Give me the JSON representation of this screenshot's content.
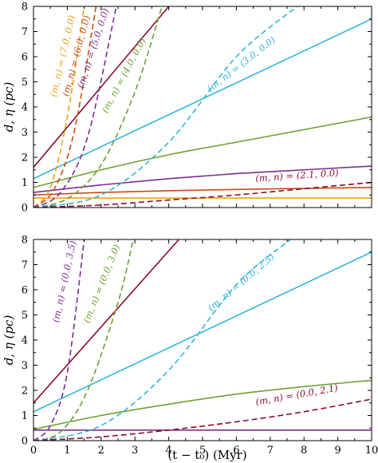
{
  "chart_data": {
    "type": "line",
    "xlabel": "(t − t₀) (Myr)",
    "x_ticks": [
      "0",
      "1",
      "2",
      "3",
      "4",
      "5",
      "6",
      "7",
      "8",
      "9",
      "10"
    ],
    "y_ticks": [
      "0",
      "1",
      "2",
      "3",
      "4",
      "5",
      "6",
      "7",
      "8"
    ],
    "panels": [
      {
        "ylabel": "d, η (pc)",
        "xlim": [
          0,
          10
        ],
        "ylim": [
          0,
          8
        ],
        "curves": [
          {
            "kind": "d",
            "style": "solid",
            "color": "#8b0a26",
            "x": [
              0,
              4.0
            ],
            "y": [
              1.6,
              8.0
            ]
          },
          {
            "kind": "d",
            "style": "solid",
            "color": "#33b5de",
            "x": [
              0,
              10
            ],
            "y": [
              1.15,
              7.5
            ]
          },
          {
            "kind": "d",
            "style": "solid",
            "color": "#6aa12e",
            "x": [
              0,
              2,
              4,
              6,
              8,
              10
            ],
            "y": [
              0.8,
              1.5,
              2.1,
              2.6,
              3.1,
              3.6
            ]
          },
          {
            "kind": "d",
            "style": "solid",
            "color": "#7b2d8e",
            "x": [
              0,
              2,
              4,
              6,
              8,
              10
            ],
            "y": [
              0.6,
              0.9,
              1.15,
              1.35,
              1.5,
              1.65
            ]
          },
          {
            "kind": "d",
            "style": "solid",
            "color": "#c84b16",
            "x": [
              0,
              2,
              4,
              6,
              8,
              10
            ],
            "y": [
              0.5,
              0.6,
              0.67,
              0.72,
              0.76,
              0.8
            ]
          },
          {
            "kind": "d",
            "style": "solid",
            "color": "#e8a317",
            "x": [
              0,
              10
            ],
            "y": [
              0.38,
              0.38
            ]
          },
          {
            "kind": "eta",
            "style": "dashed",
            "color": "#e8a317",
            "label": "(m, n) = (7.0, 0.0)",
            "x": [
              0,
              0.5,
              1.0,
              1.5
            ],
            "y": [
              0,
              0.8,
              3.6,
              8.0
            ]
          },
          {
            "kind": "eta",
            "style": "dashed",
            "color": "#c84b16",
            "label": "(m, n) = (6.0, 0.0)",
            "x": [
              0,
              0.6,
              1.2,
              1.85
            ],
            "y": [
              0,
              0.7,
              3.0,
              8.0
            ]
          },
          {
            "kind": "eta",
            "style": "dashed",
            "color": "#7b2d8e",
            "label": "(m, n) = (5.0, 0.0)",
            "x": [
              0,
              0.8,
              1.6,
              2.45
            ],
            "y": [
              0,
              0.6,
              2.8,
              8.0
            ]
          },
          {
            "kind": "eta",
            "style": "dashed",
            "color": "#6aa12e",
            "label": "(m, n) = (4.0, 0.0)",
            "x": [
              0,
              1.0,
              2.0,
              3.0,
              3.8
            ],
            "y": [
              0,
              0.35,
              1.7,
              4.6,
              8.0
            ]
          },
          {
            "kind": "eta",
            "style": "dashed",
            "color": "#33b5de",
            "label": "(m, n) = (3.0, 0.0)",
            "x": [
              0,
              2,
              4,
              6,
              7.8
            ],
            "y": [
              0,
              0.5,
              2.6,
              6.0,
              8.0
            ]
          },
          {
            "kind": "eta",
            "style": "dashed",
            "color": "#8b0a26",
            "label": "(m, n) = (2.1, 0.0)",
            "x": [
              0,
              2,
              4,
              6,
              8,
              10
            ],
            "y": [
              0,
              0.1,
              0.3,
              0.5,
              0.75,
              1.0
            ]
          }
        ]
      },
      {
        "ylabel": "d, η (pc)",
        "xlim": [
          0,
          10
        ],
        "ylim": [
          0,
          8
        ],
        "curves": [
          {
            "kind": "d",
            "style": "solid",
            "color": "#8b0a26",
            "x": [
              0,
              4.3
            ],
            "y": [
              1.5,
              8.0
            ]
          },
          {
            "kind": "d",
            "style": "solid",
            "color": "#33b5de",
            "x": [
              0,
              10
            ],
            "y": [
              1.15,
              7.5
            ]
          },
          {
            "kind": "d",
            "style": "solid",
            "color": "#6aa12e",
            "x": [
              0,
              2,
              4,
              6,
              8,
              10
            ],
            "y": [
              0.45,
              1.0,
              1.45,
              1.85,
              2.15,
              2.4
            ]
          },
          {
            "kind": "d",
            "style": "solid",
            "color": "#7b2d8e",
            "x": [
              0,
              10
            ],
            "y": [
              0.42,
              0.42
            ]
          },
          {
            "kind": "eta",
            "style": "dashed",
            "color": "#7b2d8e",
            "label": "(m, n) = (0.0, 3.5)",
            "x": [
              0,
              0.5,
              1.0,
              1.5
            ],
            "y": [
              0,
              0.6,
              2.7,
              8.0
            ]
          },
          {
            "kind": "eta",
            "style": "dashed",
            "color": "#6aa12e",
            "label": "(m, n) = (0.0, 3.0)",
            "x": [
              0,
              0.8,
              1.6,
              2.5,
              2.95
            ],
            "y": [
              0,
              0.35,
              2.0,
              5.5,
              8.0
            ]
          },
          {
            "kind": "eta",
            "style": "dashed",
            "color": "#33b5de",
            "label": "(m, n) = (0.0, 2.5)",
            "x": [
              0,
              2,
              4,
              6,
              7.6
            ],
            "y": [
              0,
              0.6,
              2.8,
              6.2,
              8.0
            ]
          },
          {
            "kind": "eta",
            "style": "dashed",
            "color": "#8b0a26",
            "label": "(m, n) = (0.0, 2.1)",
            "x": [
              0,
              2,
              4,
              6,
              8,
              10
            ],
            "y": [
              0,
              0.15,
              0.42,
              0.75,
              1.15,
              1.65
            ]
          }
        ]
      }
    ]
  }
}
